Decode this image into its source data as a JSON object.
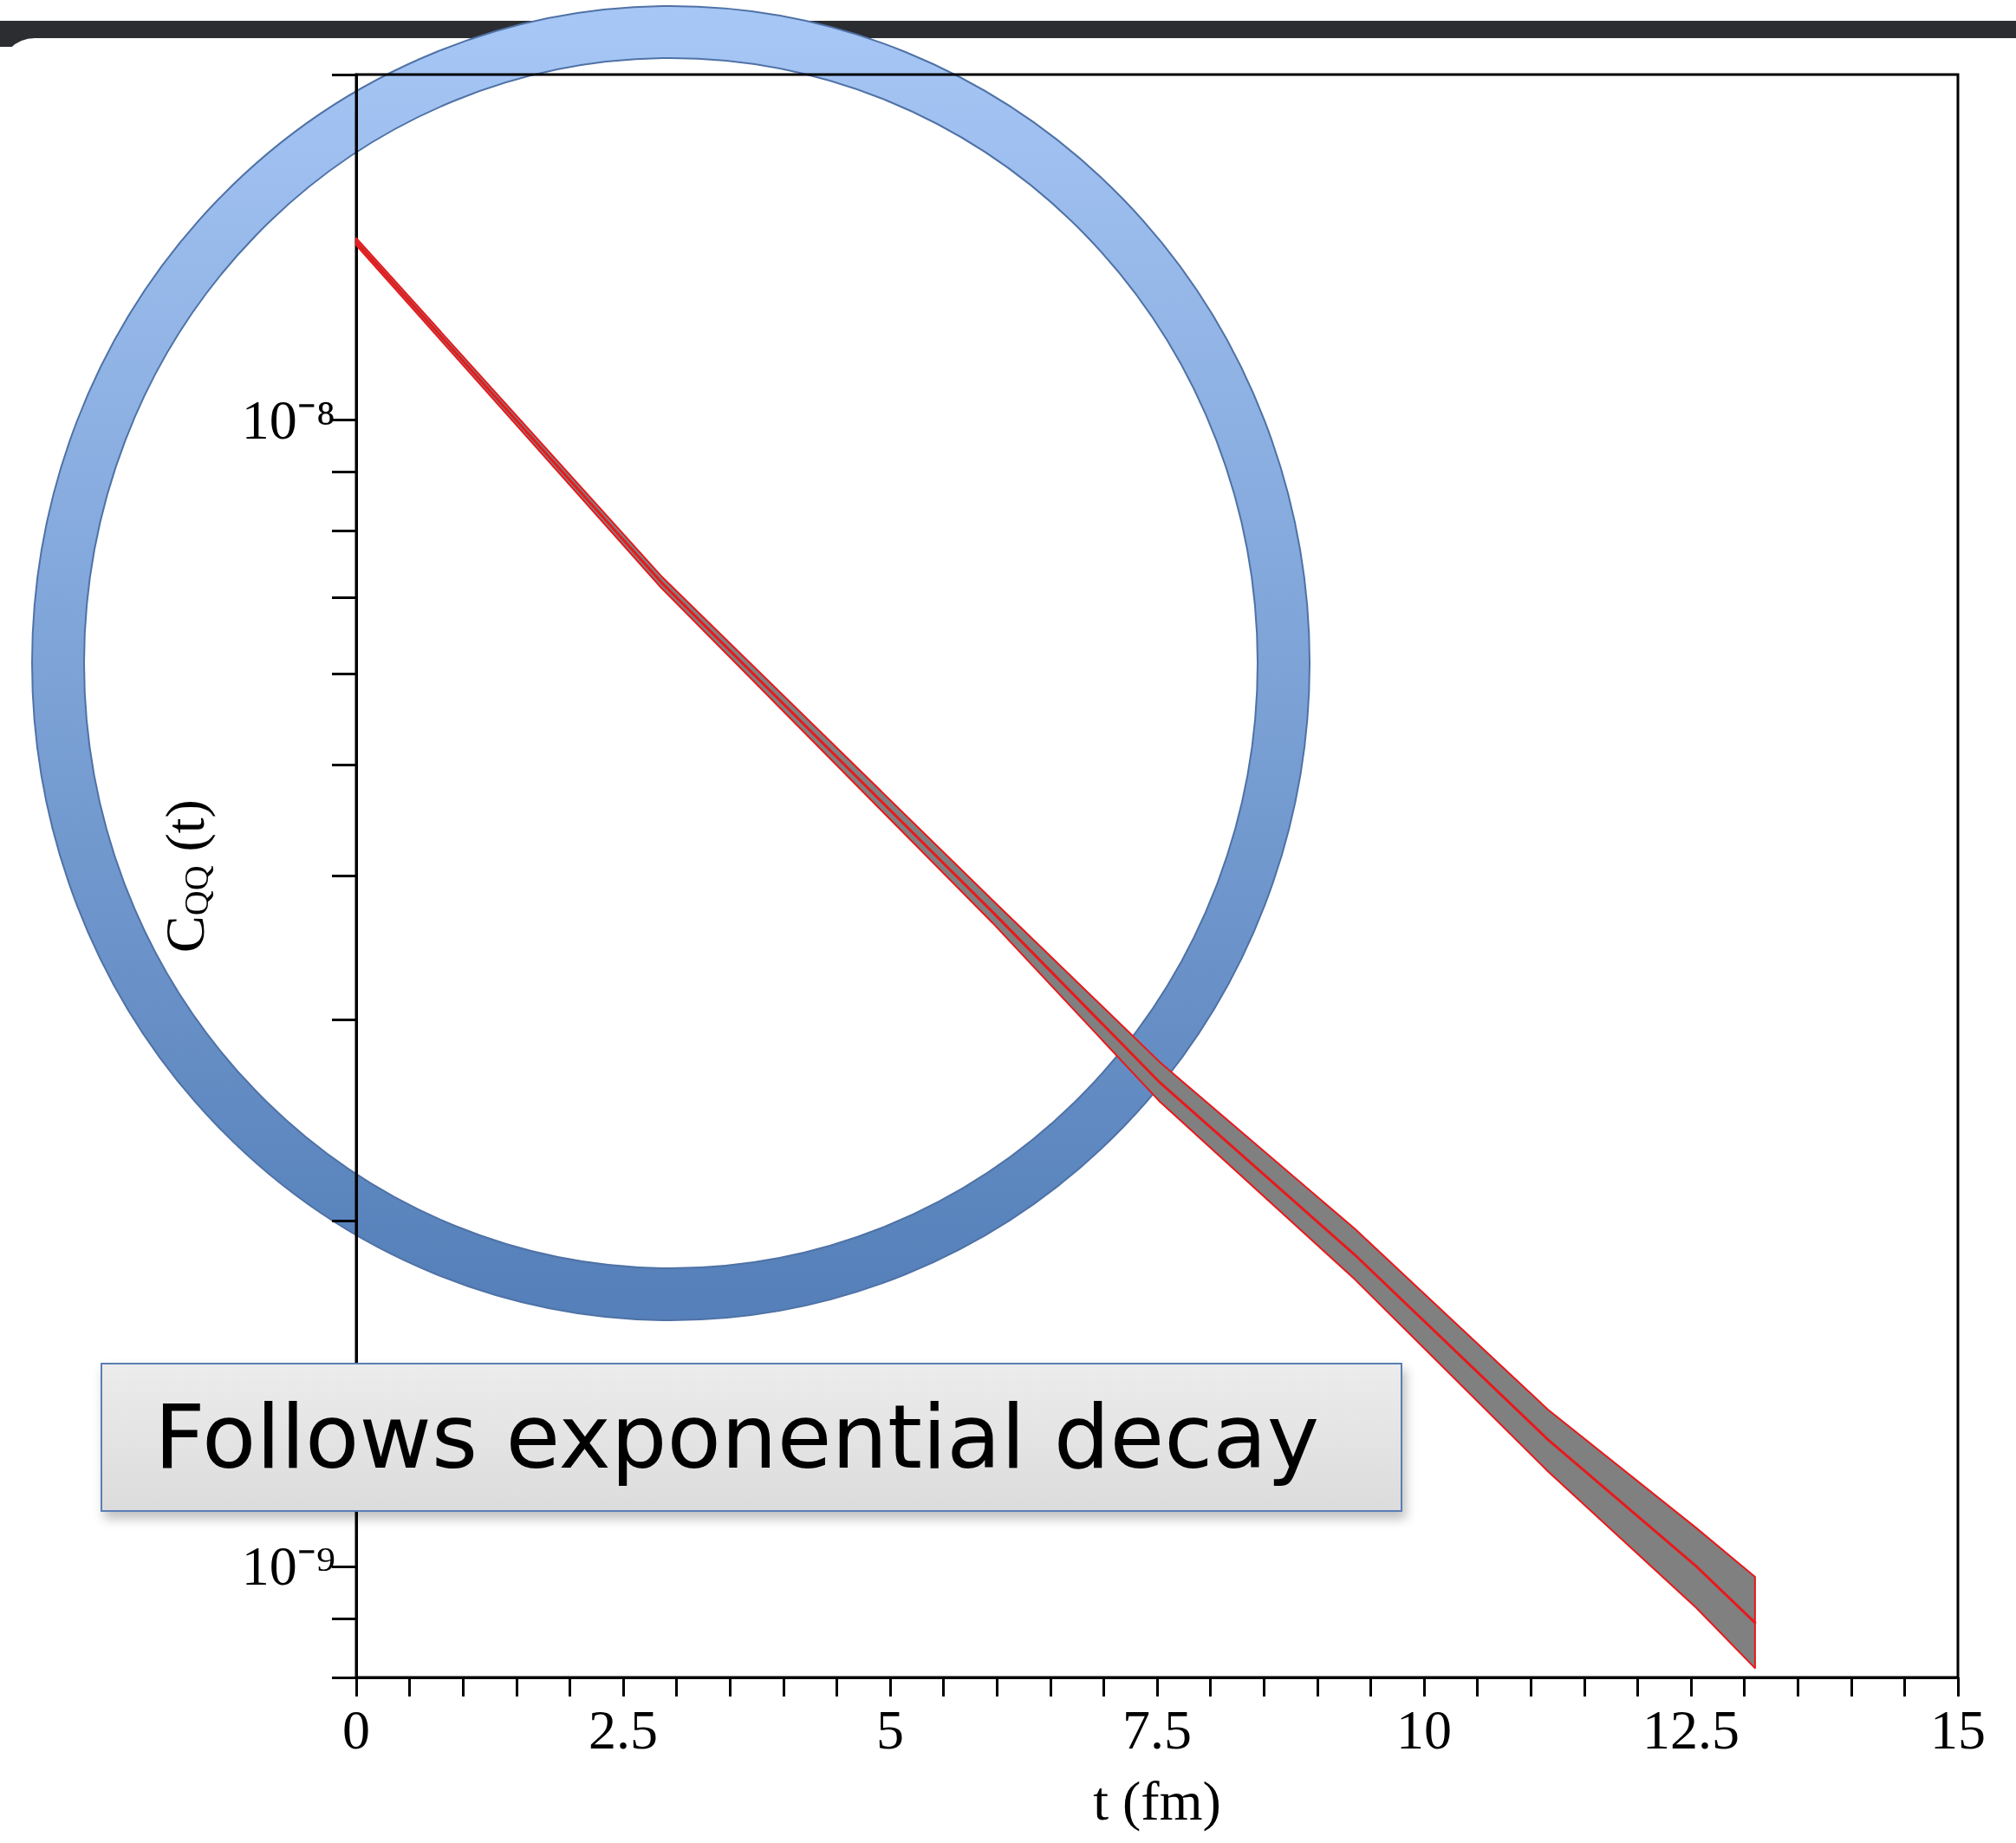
{
  "chart_data": {
    "type": "line",
    "xlabel": "t (fm)",
    "ylabel": "C$_{QQ}$ (t)",
    "annotations": [
      "Follows exponential decay"
    ],
    "log": "y",
    "grid": false,
    "marker": "none",
    "line_style": "solid",
    "xlim": [
      0,
      15
    ],
    "ylim": [
      8e-10,
      2e-08
    ],
    "xticks": [
      0,
      2.5,
      5,
      7.5,
      10,
      12.5,
      15
    ],
    "yticks": [
      {
        "value": 1e-09,
        "label": "10⁻⁹"
      },
      {
        "value": 1e-08,
        "label": "10⁻⁸"
      }
    ],
    "x": [
      0,
      2.86,
      5.96,
      7.53,
      9.35,
      11.16,
      12.55,
      13.1
    ],
    "series": [
      {
        "color": "#e8191c",
        "values": [
          1.43e-08,
          7.21e-09,
          3.72e-09,
          2.64e-09,
          1.87e-09,
          1.29e-09,
          1e-09,
          8.93e-10
        ],
        "lower": [
          1.42e-08,
          7.13e-09,
          3.64e-09,
          2.54e-09,
          1.78e-09,
          1.21e-09,
          9.2e-10,
          8.15e-10
        ],
        "upper": [
          1.44e-08,
          7.3e-09,
          3.81e-09,
          2.75e-09,
          1.97e-09,
          1.37e-09,
          1.08e-09,
          9.79e-10
        ]
      }
    ]
  }
}
